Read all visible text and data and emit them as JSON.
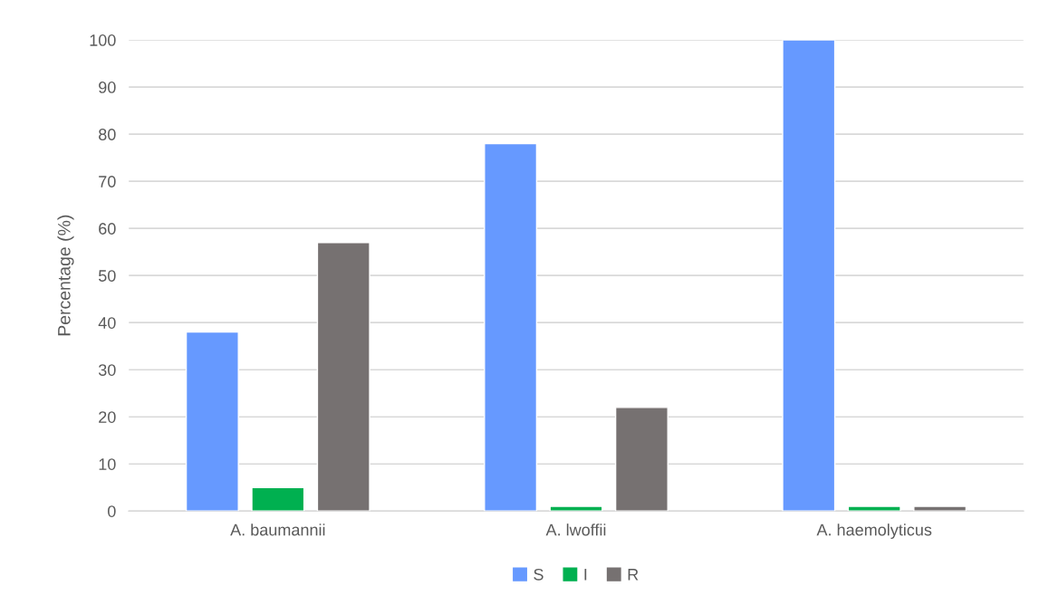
{
  "chart_data": {
    "type": "bar",
    "ylabel": "Percentage (%)",
    "categories": [
      "A. baumannii",
      "A. lwoffii",
      "A. haemolyticus"
    ],
    "series": [
      {
        "name": "S",
        "color": "#6699ff",
        "values": [
          38,
          78,
          100
        ]
      },
      {
        "name": "I",
        "color": "#00b050",
        "values": [
          5,
          1,
          1
        ]
      },
      {
        "name": "R",
        "color": "#767171",
        "values": [
          57,
          22,
          1
        ]
      }
    ],
    "ylim": [
      0,
      100
    ],
    "yticks": [
      0,
      10,
      20,
      30,
      40,
      50,
      60,
      70,
      80,
      90,
      100
    ],
    "grid": "y",
    "legend": "bottom"
  }
}
